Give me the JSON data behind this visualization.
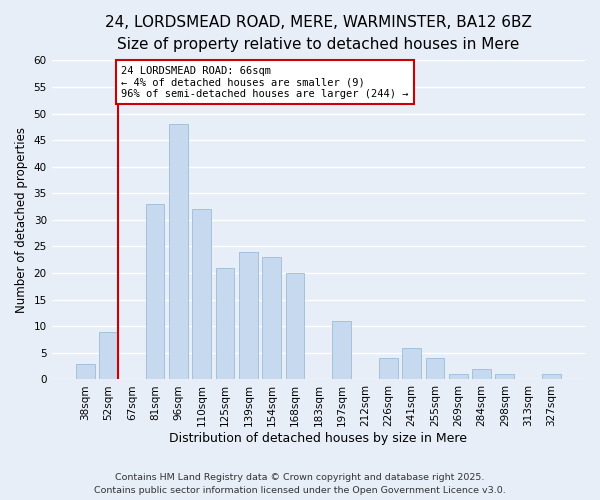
{
  "title": "24, LORDSMEAD ROAD, MERE, WARMINSTER, BA12 6BZ",
  "subtitle": "Size of property relative to detached houses in Mere",
  "xlabel": "Distribution of detached houses by size in Mere",
  "ylabel": "Number of detached properties",
  "bar_labels": [
    "38sqm",
    "52sqm",
    "67sqm",
    "81sqm",
    "96sqm",
    "110sqm",
    "125sqm",
    "139sqm",
    "154sqm",
    "168sqm",
    "183sqm",
    "197sqm",
    "212sqm",
    "226sqm",
    "241sqm",
    "255sqm",
    "269sqm",
    "284sqm",
    "298sqm",
    "313sqm",
    "327sqm"
  ],
  "bar_values": [
    3,
    9,
    0,
    33,
    48,
    32,
    21,
    24,
    23,
    20,
    0,
    11,
    0,
    4,
    6,
    4,
    1,
    2,
    1,
    0,
    1
  ],
  "bar_color": "#c6d9ee",
  "bar_edge_color": "#9bbdd6",
  "vline_color": "#cc0000",
  "annotation_text": "24 LORDSMEAD ROAD: 66sqm\n← 4% of detached houses are smaller (9)\n96% of semi-detached houses are larger (244) →",
  "annotation_box_edge_color": "#cc0000",
  "annotation_box_facecolor": "#ffffff",
  "ylim": [
    0,
    60
  ],
  "yticks": [
    0,
    5,
    10,
    15,
    20,
    25,
    30,
    35,
    40,
    45,
    50,
    55,
    60
  ],
  "footer_line1": "Contains HM Land Registry data © Crown copyright and database right 2025.",
  "footer_line2": "Contains public sector information licensed under the Open Government Licence v3.0.",
  "title_fontsize": 11,
  "subtitle_fontsize": 9.5,
  "xlabel_fontsize": 9,
  "ylabel_fontsize": 8.5,
  "footer_fontsize": 6.8,
  "bg_color": "#e8eef8",
  "grid_color": "#ffffff",
  "tick_fontsize": 7.5
}
